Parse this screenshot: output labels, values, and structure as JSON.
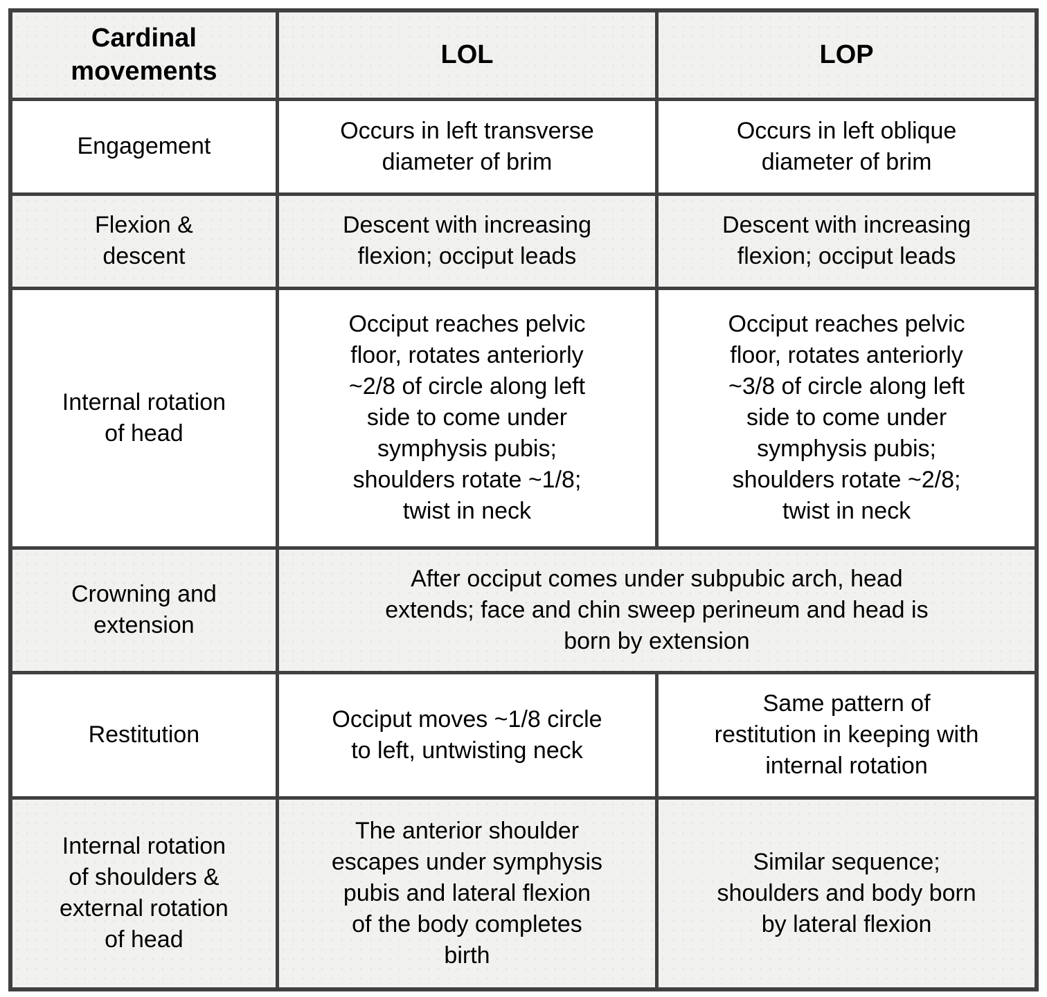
{
  "table": {
    "header": {
      "movement": "Cardinal\nmovements",
      "lol": "LOL",
      "lop": "LOP"
    },
    "rows": [
      {
        "movement": "Engagement",
        "lol": "Occurs in left transverse\ndiameter of brim",
        "lop": "Occurs in left oblique\ndiameter of brim"
      },
      {
        "movement": "Flexion &\ndescent",
        "lol": "Descent with increasing\nflexion; occiput leads",
        "lop": "Descent with increasing\nflexion; occiput leads"
      },
      {
        "movement": "Internal rotation\nof head",
        "lol": "Occiput reaches pelvic\nfloor, rotates anteriorly\n~2/8 of circle along left\nside to come under\nsymphysis pubis;\nshoulders rotate ~1/8;\ntwist in neck",
        "lop": "Occiput reaches pelvic\nfloor, rotates anteriorly\n~3/8 of circle along left\nside to come under\nsymphysis pubis;\nshoulders rotate ~2/8;\ntwist in neck"
      },
      {
        "movement": "Crowning and\nextension",
        "merged": "After occiput comes under subpubic arch, head\nextends; face and chin sweep perineum and head is\nborn by extension"
      },
      {
        "movement": "Restitution",
        "lol": "Occiput moves ~1/8 circle\nto left, untwisting neck",
        "lop": "Same pattern of\nrestitution in keeping with\ninternal rotation"
      },
      {
        "movement": "Internal rotation\nof shoulders &\nexternal rotation\nof head",
        "lol": "The anterior shoulder\nescapes under symphysis\npubis and lateral flexion\nof the body completes\nbirth",
        "lop": "Similar sequence;\nshoulders and body born\nby lateral flexion"
      }
    ]
  },
  "colors": {
    "border": "#404040",
    "row_shaded": "#f1f1f0",
    "row_plain": "#ffffff",
    "text": "#000000"
  }
}
